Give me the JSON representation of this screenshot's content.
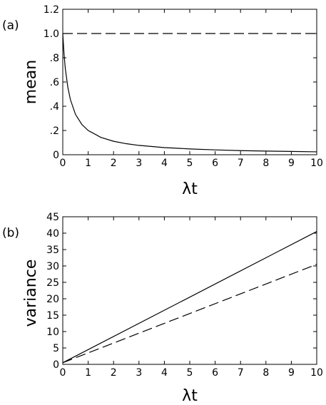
{
  "chart_data": [
    {
      "type": "line",
      "panel_label": "(a)",
      "xlabel": "λt",
      "ylabel": "mean",
      "xlim": [
        0,
        10
      ],
      "ylim": [
        0,
        1.2
      ],
      "x_ticks": [
        0,
        1,
        2,
        3,
        4,
        5,
        6,
        7,
        8,
        9,
        10
      ],
      "x_tick_labels": [
        "0",
        "1",
        "2",
        "3",
        "4",
        "5",
        "6",
        "7",
        "8",
        "9",
        "10"
      ],
      "y_ticks": [
        0,
        0.2,
        0.4,
        0.6,
        0.8,
        1.0,
        1.2
      ],
      "y_tick_labels": [
        "0",
        ".2",
        ".4",
        ".6",
        ".8",
        "1.0",
        "1.2"
      ],
      "grid": false,
      "series": [
        {
          "style": "dashed",
          "x": [
            0,
            10
          ],
          "y": [
            1.0,
            1.0
          ]
        },
        {
          "style": "solid",
          "x": [
            0,
            0.05,
            0.1,
            0.2,
            0.3,
            0.5,
            0.75,
            1,
            1.5,
            2,
            2.5,
            3,
            4,
            5,
            6,
            7,
            8,
            9,
            10
          ],
          "y": [
            1.0,
            0.83,
            0.71,
            0.556,
            0.455,
            0.333,
            0.25,
            0.2,
            0.143,
            0.111,
            0.091,
            0.077,
            0.059,
            0.048,
            0.04,
            0.034,
            0.03,
            0.027,
            0.024
          ]
        }
      ]
    },
    {
      "type": "line",
      "panel_label": "(b)",
      "xlabel": "λt",
      "ylabel": "variance",
      "xlim": [
        0,
        10
      ],
      "ylim": [
        0,
        45
      ],
      "x_ticks": [
        0,
        1,
        2,
        3,
        4,
        5,
        6,
        7,
        8,
        9,
        10
      ],
      "x_tick_labels": [
        "0",
        "1",
        "2",
        "3",
        "4",
        "5",
        "6",
        "7",
        "8",
        "9",
        "10"
      ],
      "y_ticks": [
        0,
        5,
        10,
        15,
        20,
        25,
        30,
        35,
        40,
        45
      ],
      "y_tick_labels": [
        "0",
        "5",
        "10",
        "15",
        "20",
        "25",
        "30",
        "35",
        "40",
        "45"
      ],
      "grid": false,
      "series": [
        {
          "style": "solid",
          "x": [
            0,
            10
          ],
          "y": [
            0.5,
            40.5
          ]
        },
        {
          "style": "dashed",
          "x": [
            0,
            10
          ],
          "y": [
            0.5,
            30.5
          ]
        }
      ]
    }
  ]
}
